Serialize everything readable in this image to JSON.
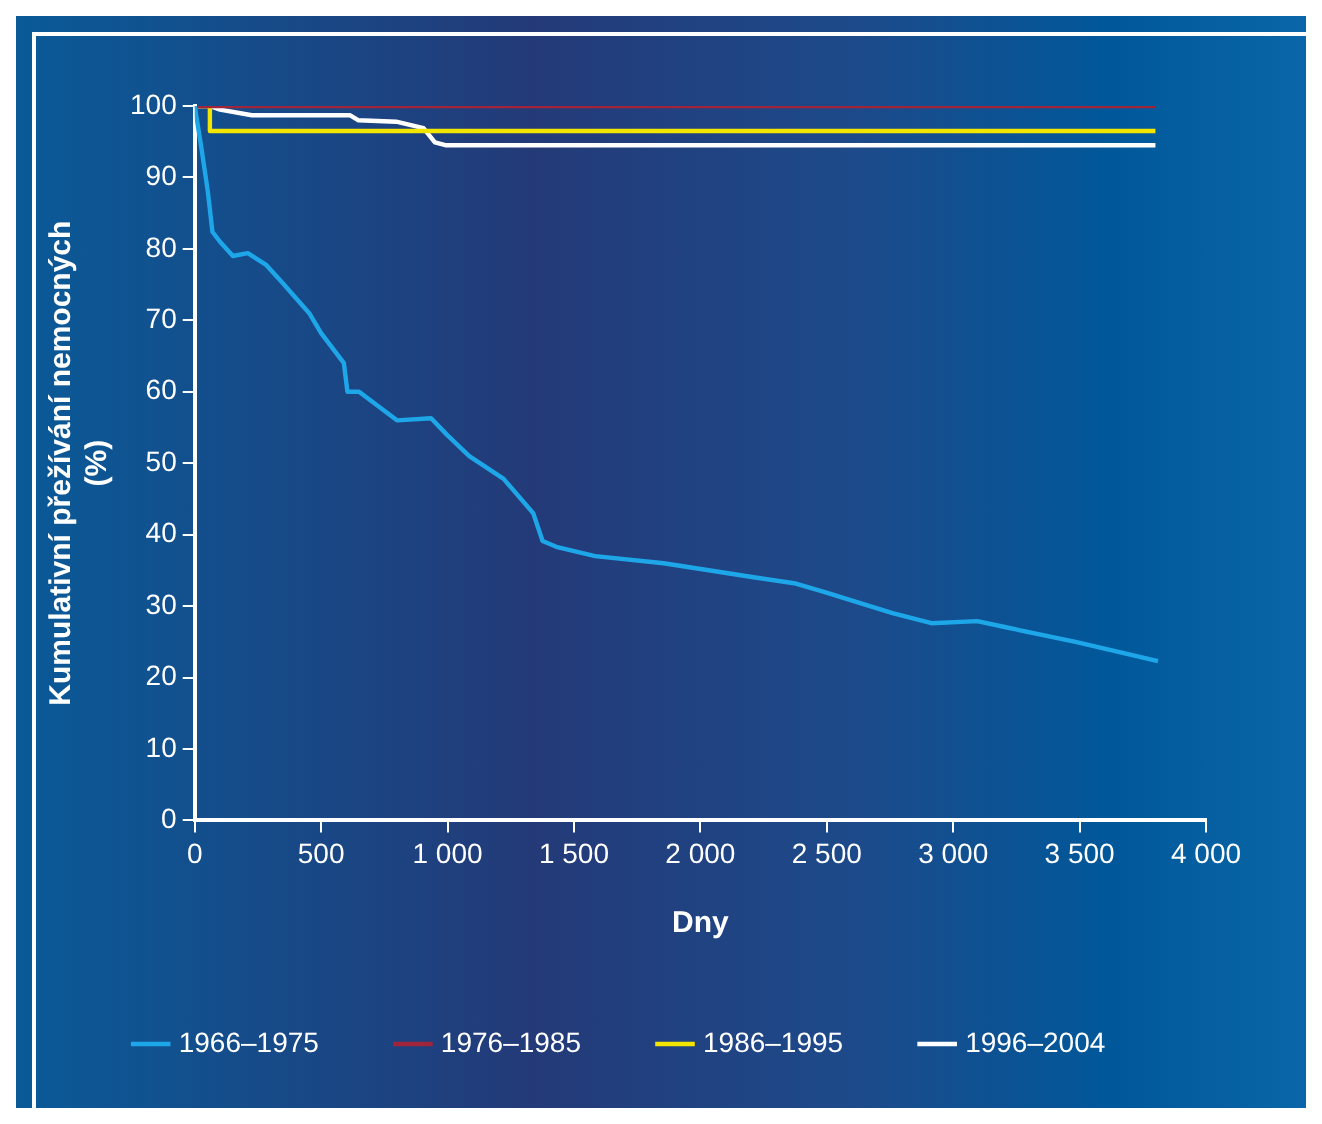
{
  "chart_data": {
    "type": "line",
    "xlabel": "Dny",
    "ylabel": "Kumulativní přežívání nemocných (%)",
    "xlim": [
      0,
      4000
    ],
    "xticks": [
      0,
      500,
      {
        "value": 1000,
        "label": "1 000"
      },
      {
        "value": 1500,
        "label": "1 500"
      },
      {
        "value": 2000,
        "label": "2 000"
      },
      {
        "value": 2500,
        "label": "2 500"
      },
      {
        "value": 3000,
        "label": "3 000"
      },
      {
        "value": 3500,
        "label": "3 500"
      },
      {
        "value": 4000,
        "label": "4 000"
      }
    ],
    "ylim": [
      0,
      100
    ],
    "yticks": [
      0,
      10,
      20,
      30,
      40,
      50,
      60,
      70,
      80,
      90,
      100
    ],
    "grid": false,
    "legend": "bottom",
    "marker": "none",
    "line_style": "solid",
    "series": [
      {
        "name": "1966–1975",
        "color": "#1ea7e8",
        "x": [
          0,
          27,
          52,
          70,
          100,
          151,
          210,
          281,
          346,
          453,
          500,
          590,
          604,
          650,
          800,
          935,
          997,
          1086,
          1222,
          1339,
          1376,
          1430,
          1584,
          1855,
          2217,
          2371,
          2489,
          2760,
          2914,
          3095,
          3213,
          3484,
          3810
        ],
        "values": [
          100,
          94,
          88,
          82.4,
          81,
          79,
          79.4,
          77.8,
          75.3,
          71,
          68.2,
          64,
          60,
          60,
          56,
          56.3,
          54,
          51,
          47.8,
          43,
          39.1,
          38.3,
          37,
          36,
          34,
          33.2,
          32,
          29,
          27.6,
          27.9,
          27,
          25,
          22.3
        ]
      },
      {
        "name": "1976–1985",
        "color": "#a0253a",
        "x": [
          0,
          3800
        ],
        "values": [
          100,
          100
        ]
      },
      {
        "name": "1986–1995",
        "color": "#f2e600",
        "x": [
          0,
          60,
          60,
          3800
        ],
        "values": [
          100,
          100,
          96.5,
          96.5
        ]
      },
      {
        "name": "1996–2004",
        "color": "#ffffff",
        "x": [
          0,
          60,
          100,
          226,
          615,
          648,
          797,
          905,
          950,
          995,
          3800
        ],
        "values": [
          100,
          100,
          99.5,
          98.7,
          98.7,
          98,
          97.8,
          96.9,
          94.9,
          94.5,
          94.5
        ]
      }
    ]
  }
}
